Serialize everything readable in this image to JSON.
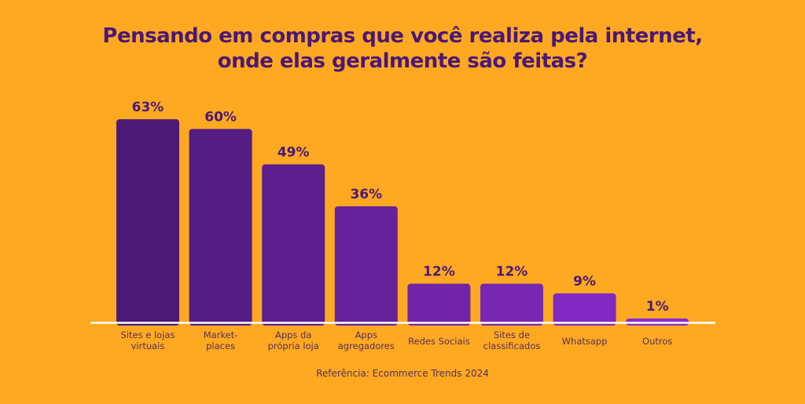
{
  "chart_data": {
    "type": "bar",
    "title": [
      "Pensando em compras que você realiza pela internet,",
      "onde elas geralmente são feitas?"
    ],
    "categories": [
      [
        "Sites e lojas",
        "virtuais"
      ],
      [
        "Market-",
        "places"
      ],
      [
        "Apps da",
        "própria loja"
      ],
      [
        "Apps",
        "agregadores"
      ],
      [
        "Redes Sociais"
      ],
      [
        "Sites de",
        "classificados"
      ],
      [
        "Whatsapp"
      ],
      [
        "Outros"
      ]
    ],
    "values": [
      63,
      60,
      49,
      36,
      12,
      12,
      9,
      1
    ],
    "value_labels": [
      "63%",
      "60%",
      "49%",
      "36%",
      "12%",
      "12%",
      "9%",
      "1%"
    ],
    "unit": "%",
    "ylim": [
      0,
      63
    ],
    "grid": false,
    "colors": {
      "background": "#fea921",
      "bar_start": "#4a1a76",
      "bar_end": "#8a2ccc",
      "text": "#4b1875",
      "baseline": "#ffffff"
    }
  },
  "footer": {
    "reference": "Referência: Ecommerce Trends 2024"
  }
}
